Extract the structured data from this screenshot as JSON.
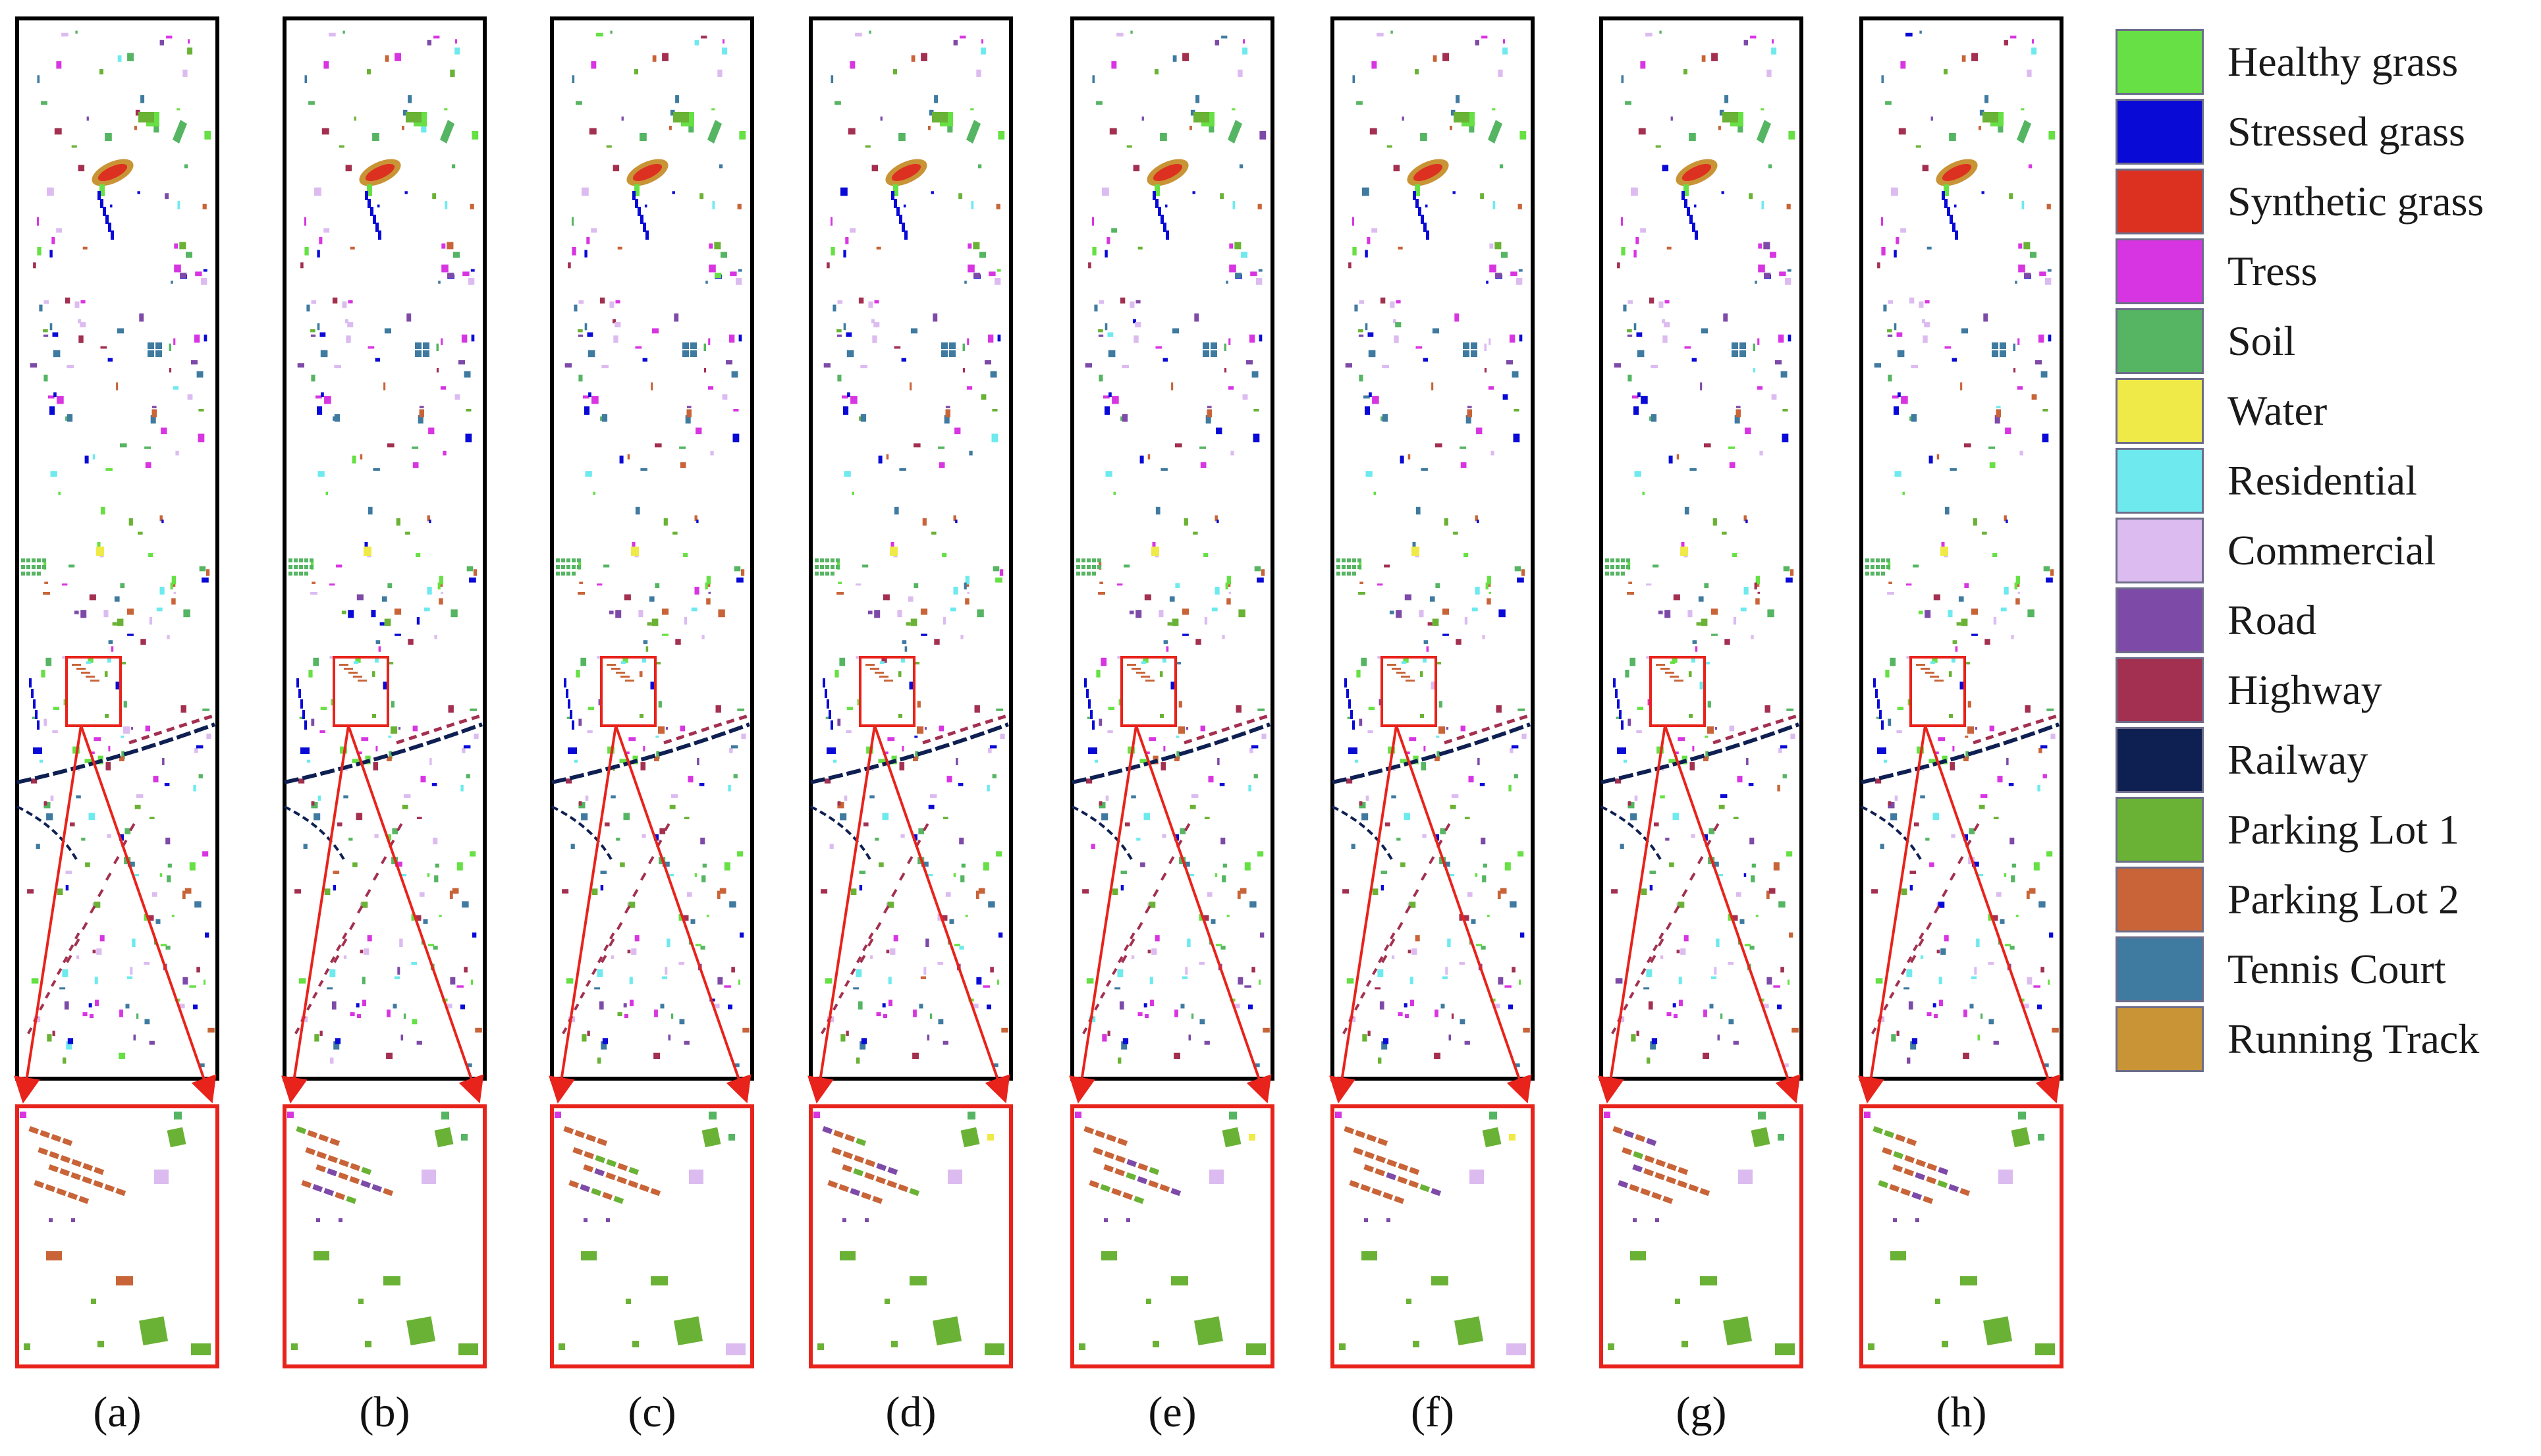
{
  "panels": [
    {
      "label": "(a)"
    },
    {
      "label": "(b)"
    },
    {
      "label": "(c)"
    },
    {
      "label": "(d)"
    },
    {
      "label": "(e)"
    },
    {
      "label": "(f)"
    },
    {
      "label": "(g)"
    },
    {
      "label": "(h)"
    }
  ],
  "legend": [
    {
      "label": "Healthy grass",
      "color": "#66e044"
    },
    {
      "label": "Stressed grass",
      "color": "#0a0ad6"
    },
    {
      "label": "Synthetic grass",
      "color": "#dc3020"
    },
    {
      "label": "Tress",
      "color": "#d835e2"
    },
    {
      "label": "Soil",
      "color": "#55b562"
    },
    {
      "label": "Water",
      "color": "#f0ea48"
    },
    {
      "label": "Residential",
      "color": "#6eeaee"
    },
    {
      "label": "Commercial",
      "color": "#dcbcf0"
    },
    {
      "label": "Road",
      "color": "#7e4aa8"
    },
    {
      "label": "Highway",
      "color": "#a33050"
    },
    {
      "label": "Railway",
      "color": "#0e1f52"
    },
    {
      "label": "Parking Lot 1",
      "color": "#6ab235"
    },
    {
      "label": "Parking Lot 2",
      "color": "#c86438"
    },
    {
      "label": "Tennis Court",
      "color": "#3f7aa0"
    },
    {
      "label": "Running Track",
      "color": "#c99435"
    }
  ]
}
